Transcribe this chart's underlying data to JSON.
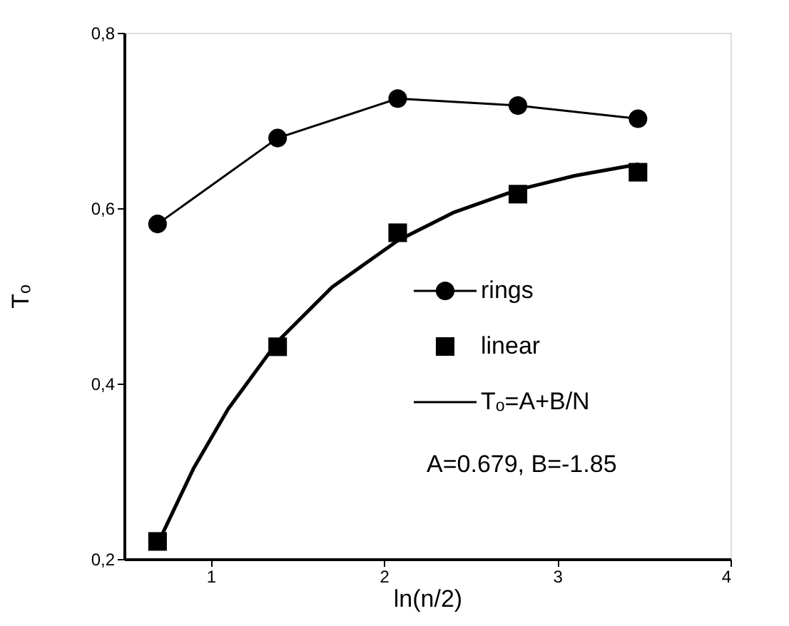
{
  "chart_data": {
    "type": "line",
    "xlabel": "ln(n/2)",
    "ylabel": "Tₒ",
    "x": [
      0.693,
      1.386,
      2.079,
      2.773,
      3.466
    ],
    "series": [
      {
        "name": "rings",
        "color": "#000000",
        "marker": "circle",
        "values": [
          0.582,
          0.68,
          0.725,
          0.717,
          0.702
        ]
      },
      {
        "name": "linear",
        "color": "#000000",
        "type": "scatter",
        "marker": "square",
        "values": [
          0.22,
          0.442,
          0.572,
          0.616,
          0.641
        ]
      },
      {
        "name": "Tₒ=A+B/N",
        "color": "#000000",
        "marker": "none",
        "x": [
          0.693,
          0.9,
          1.1,
          1.386,
          1.7,
          2.079,
          2.4,
          2.773,
          3.1,
          3.466
        ],
        "values": [
          0.217,
          0.303,
          0.371,
          0.448,
          0.51,
          0.563,
          0.595,
          0.621,
          0.637,
          0.65
        ]
      }
    ],
    "xlim": [
      0.5,
      4
    ],
    "xticks": [
      1,
      2,
      3,
      4
    ],
    "ylim": [
      0.2,
      0.8
    ],
    "yticks": [
      {
        "value": 0.2,
        "label": "0,2"
      },
      {
        "value": 0.4,
        "label": "0,4"
      },
      {
        "value": 0.6,
        "label": "0,6"
      },
      {
        "value": 0.8,
        "label": "0,8"
      }
    ],
    "grid": false,
    "legend": "right",
    "annotations": [
      "A=0.679, B=-1.85"
    ]
  }
}
